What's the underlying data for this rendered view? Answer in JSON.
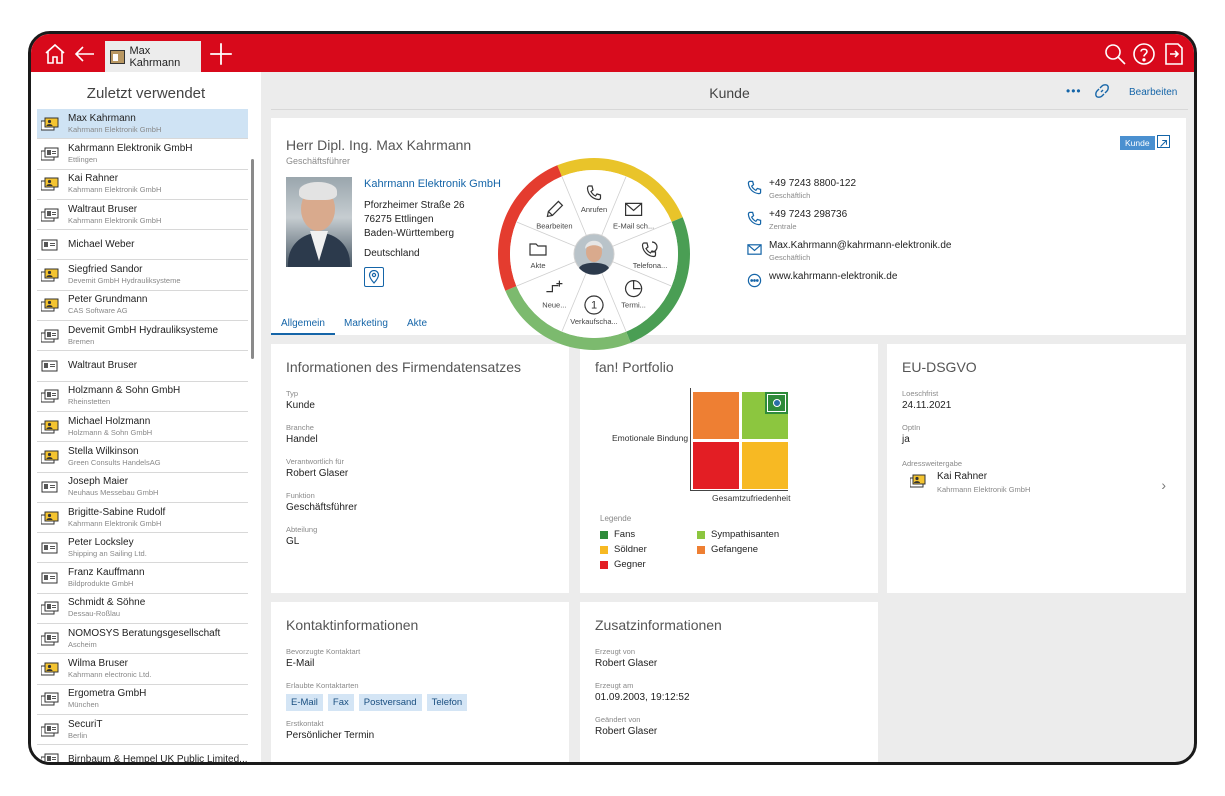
{
  "tab": {
    "label": "Max Kahrmann"
  },
  "sidebar": {
    "title": "Zuletzt verwendet",
    "items": [
      {
        "name": "Max Kahrmann",
        "sub": "Kahrmann Elektronik GmbH",
        "kind": "person"
      },
      {
        "name": "Kahrmann Elektronik GmbH",
        "sub": "Ettlingen",
        "kind": "company"
      },
      {
        "name": "Kai Rahner",
        "sub": "Kahrmann Elektronik GmbH",
        "kind": "person"
      },
      {
        "name": "Waltraut Bruser",
        "sub": "Kahrmann Elektronik GmbH",
        "kind": "company"
      },
      {
        "name": "Michael Weber",
        "sub": "",
        "kind": "card"
      },
      {
        "name": "Siegfried Sandor",
        "sub": "Devemit GmbH Hydrauliksysteme",
        "kind": "person"
      },
      {
        "name": "Peter Grundmann",
        "sub": "CAS Software AG",
        "kind": "person"
      },
      {
        "name": "Devemit GmbH Hydrauliksysteme",
        "sub": "Bremen",
        "kind": "company"
      },
      {
        "name": "Waltraut Bruser",
        "sub": "",
        "kind": "card"
      },
      {
        "name": "Holzmann & Sohn GmbH",
        "sub": "Rheinstetten",
        "kind": "company"
      },
      {
        "name": "Michael Holzmann",
        "sub": "Holzmann & Sohn GmbH",
        "kind": "person"
      },
      {
        "name": "Stella Wilkinson",
        "sub": "Green Consults HandelsAG",
        "kind": "person"
      },
      {
        "name": "Joseph Maier",
        "sub": "Neuhaus Messebau GmbH",
        "kind": "card"
      },
      {
        "name": "Brigitte-Sabine Rudolf",
        "sub": "Kahrmann Elektronik GmbH",
        "kind": "person"
      },
      {
        "name": "Peter Locksley",
        "sub": "Shipping an Sailing Ltd.",
        "kind": "card"
      },
      {
        "name": "Franz Kauffmann",
        "sub": "Bildprodukte GmbH",
        "kind": "card"
      },
      {
        "name": "Schmidt & Söhne",
        "sub": "Dessau-Roßlau",
        "kind": "company"
      },
      {
        "name": "NOMOSYS Beratungsgesellschaft",
        "sub": "Ascheim",
        "kind": "company"
      },
      {
        "name": "Wilma Bruser",
        "sub": "Kahrmann electronic Ltd.",
        "kind": "person"
      },
      {
        "name": "Ergometra GmbH",
        "sub": "München",
        "kind": "company"
      },
      {
        "name": "SecuriT",
        "sub": "Berlin",
        "kind": "company"
      },
      {
        "name": "Birnbaum & Hempel UK Public Limited...",
        "sub": "",
        "kind": "company"
      }
    ]
  },
  "main": {
    "title": "Kunde",
    "more": "•••",
    "edit_label": "Bearbeiten"
  },
  "profile": {
    "name": "Herr Dipl. Ing. Max Kahrmann",
    "role": "Geschäftsführer",
    "company": "Kahrmann Elektronik GmbH",
    "street": "Pforzheimer Straße 26",
    "city": "76275 Ettlingen",
    "state": "Baden-Württemberg",
    "country": "Deutschland",
    "badge": "Kunde",
    "tabs": [
      "Allgemein",
      "Marketing",
      "Akte"
    ],
    "contacts": [
      {
        "value": "+49 7243 8800-122",
        "label": "Geschäftlich",
        "icon": "phone-icon"
      },
      {
        "value": "+49 7243 298736",
        "label": "Zentrale",
        "icon": "phone-icon"
      },
      {
        "value": "Max.Kahrmann@kahrmann-elektronik.de",
        "label": "Geschäftlich",
        "icon": "mail-icon"
      },
      {
        "value": "www.kahrmann-elektronik.de",
        "label": "",
        "icon": "web-icon"
      }
    ]
  },
  "wheel": {
    "items": [
      "Anrufen",
      "E-Mail sch...",
      "Telefona...",
      "Termi...",
      "Verkaufscha...",
      "Neue...",
      "Akte",
      "Bearbeiten"
    ],
    "badge_number": "1"
  },
  "info": {
    "title": "Informationen des Firmendatensatzes",
    "fields": [
      {
        "label": "Typ",
        "value": "Kunde"
      },
      {
        "label": "Branche",
        "value": "Handel"
      },
      {
        "label": "Verantwortlich für",
        "value": "Robert Glaser"
      },
      {
        "label": "Funktion",
        "value": "Geschäftsführer"
      },
      {
        "label": "Abteilung",
        "value": "GL"
      }
    ]
  },
  "portfolio": {
    "title": "fan! Portfolio",
    "ylabel": "Emotionale Bindung",
    "xlabel": "Gesamtzufriedenheit",
    "legend_title": "Legende",
    "legend": [
      {
        "label": "Fans",
        "color": "#2e8b3a"
      },
      {
        "label": "Sympathisanten",
        "color": "#8cc63f"
      },
      {
        "label": "Söldner",
        "color": "#f7b923"
      },
      {
        "label": "Gefangene",
        "color": "#ee7f33"
      },
      {
        "label": "Gegner",
        "color": "#e31e24"
      }
    ]
  },
  "dsgvo": {
    "title": "EU-DSGVO",
    "fields": [
      {
        "label": "Loeschfrist",
        "value": "24.11.2021"
      },
      {
        "label": "OptIn",
        "value": "ja"
      }
    ],
    "adr_label": "Adressweitergabe",
    "adr_name": "Kai Rahner",
    "adr_sub": "Kahrmann Elektronik GmbH"
  },
  "kontakt": {
    "title": "Kontaktinformationen",
    "pref_label": "Bevorzugte Kontaktart",
    "pref_value": "E-Mail",
    "allowed_label": "Erlaubte Kontaktarten",
    "allowed": [
      "E-Mail",
      "Fax",
      "Postversand",
      "Telefon"
    ],
    "first_label": "Erstkontakt",
    "first_value": "Persönlicher Termin"
  },
  "zusatz": {
    "title": "Zusatzinformationen",
    "fields": [
      {
        "label": "Erzeugt von",
        "value": "Robert Glaser"
      },
      {
        "label": "Erzeugt am",
        "value": "01.09.2003, 19:12:52"
      },
      {
        "label": "Geändert von",
        "value": "Robert Glaser"
      }
    ]
  }
}
